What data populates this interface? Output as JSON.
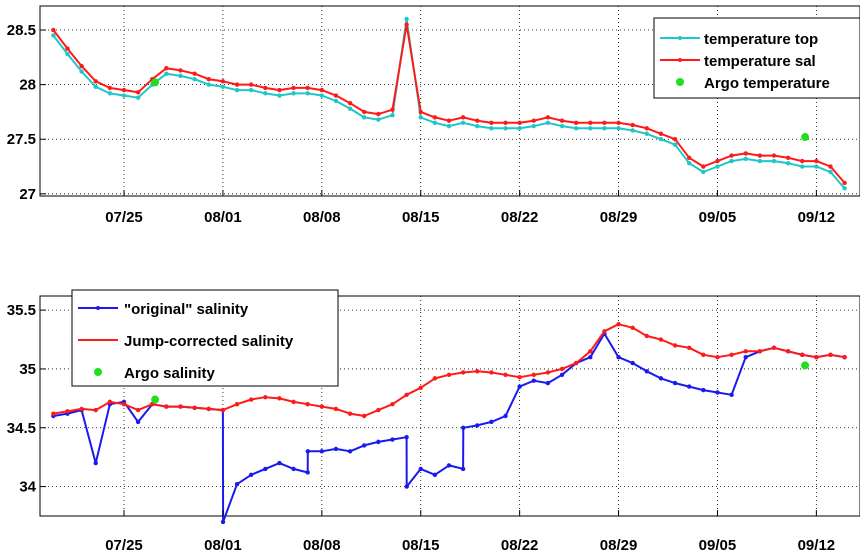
{
  "chart_data": [
    {
      "type": "line",
      "x_start": "07/20",
      "x_ticks": [
        "07/25",
        "08/01",
        "08/08",
        "08/15",
        "08/22",
        "08/29",
        "09/05",
        "09/12"
      ],
      "y_ticks": [
        "27",
        "27.5",
        "28",
        "28.5"
      ],
      "ylim": [
        26.98,
        28.72
      ],
      "grid": true,
      "legend": "top-right",
      "colors": {
        "temp_top": "#1fc7c7",
        "temp_sal": "#ff1a1a",
        "argo": "#22dd22"
      },
      "series": [
        {
          "name": "temperature top",
          "x": [
            0,
            1,
            2,
            3,
            4,
            5,
            6,
            7,
            8,
            9,
            10,
            11,
            12,
            13,
            14,
            15,
            16,
            17,
            18,
            19,
            20,
            21,
            22,
            23,
            24,
            25,
            26,
            27,
            28,
            29,
            30,
            31,
            32,
            33,
            34,
            35,
            36,
            37,
            38,
            39,
            40,
            41,
            42,
            43,
            44,
            45,
            46,
            47,
            48,
            49,
            50,
            51,
            52,
            53,
            54,
            55,
            56
          ],
          "values": [
            28.45,
            28.28,
            28.12,
            27.98,
            27.92,
            27.9,
            27.88,
            28.0,
            28.1,
            28.08,
            28.05,
            28.0,
            27.98,
            27.95,
            27.95,
            27.92,
            27.9,
            27.92,
            27.92,
            27.9,
            27.85,
            27.78,
            27.7,
            27.68,
            27.72,
            28.6,
            27.7,
            27.65,
            27.62,
            27.65,
            27.62,
            27.6,
            27.6,
            27.6,
            27.62,
            27.65,
            27.62,
            27.6,
            27.6,
            27.6,
            27.6,
            27.58,
            27.55,
            27.5,
            27.45,
            27.28,
            27.2,
            27.25,
            27.3,
            27.32,
            27.3,
            27.3,
            27.28,
            27.25,
            27.25,
            27.2,
            27.05
          ]
        },
        {
          "name": "temperature sal",
          "x": [
            0,
            1,
            2,
            3,
            4,
            5,
            6,
            7,
            8,
            9,
            10,
            11,
            12,
            13,
            14,
            15,
            16,
            17,
            18,
            19,
            20,
            21,
            22,
            23,
            24,
            25,
            26,
            27,
            28,
            29,
            30,
            31,
            32,
            33,
            34,
            35,
            36,
            37,
            38,
            39,
            40,
            41,
            42,
            43,
            44,
            45,
            46,
            47,
            48,
            49,
            50,
            51,
            52,
            53,
            54,
            55,
            56
          ],
          "values": [
            28.5,
            28.33,
            28.17,
            28.03,
            27.97,
            27.95,
            27.93,
            28.05,
            28.15,
            28.13,
            28.1,
            28.05,
            28.03,
            28.0,
            28.0,
            27.97,
            27.95,
            27.97,
            27.97,
            27.95,
            27.9,
            27.83,
            27.75,
            27.73,
            27.77,
            28.55,
            27.75,
            27.7,
            27.67,
            27.7,
            27.67,
            27.65,
            27.65,
            27.65,
            27.67,
            27.7,
            27.67,
            27.65,
            27.65,
            27.65,
            27.65,
            27.63,
            27.6,
            27.55,
            27.5,
            27.33,
            27.25,
            27.3,
            27.35,
            27.37,
            27.35,
            27.35,
            27.33,
            27.3,
            27.3,
            27.25,
            27.1
          ]
        },
        {
          "name": "Argo temperature",
          "style": "points",
          "x": [
            7.2,
            53.2
          ],
          "values": [
            28.02,
            27.52
          ]
        }
      ]
    },
    {
      "type": "line",
      "x_start": "07/20",
      "x_ticks": [
        "07/25",
        "08/01",
        "08/08",
        "08/15",
        "08/22",
        "08/29",
        "09/05",
        "09/12"
      ],
      "y_ticks": [
        "34",
        "34.5",
        "35",
        "35.5"
      ],
      "ylim": [
        33.75,
        35.62
      ],
      "grid": true,
      "legend": "top-left",
      "colors": {
        "original": "#1a1aee",
        "corrected": "#ff1a1a",
        "argo": "#22dd22"
      },
      "series": [
        {
          "name": "\"original\" salinity",
          "x": [
            0,
            1,
            2,
            3,
            4,
            5,
            6,
            7,
            8,
            9,
            10,
            11,
            12,
            12.01,
            13,
            14,
            15,
            16,
            17,
            18,
            18.01,
            19,
            20,
            21,
            22,
            23,
            24,
            25,
            25.01,
            26,
            27,
            28,
            29,
            29.01,
            30,
            31,
            32,
            33,
            34,
            35,
            36,
            37,
            38,
            39,
            40,
            41,
            42,
            43,
            44,
            45,
            46,
            47,
            48,
            49,
            50,
            51,
            52,
            53,
            54,
            55,
            56
          ],
          "values": [
            34.6,
            34.62,
            34.65,
            34.2,
            34.7,
            34.72,
            34.55,
            34.7,
            34.68,
            34.68,
            34.67,
            34.66,
            34.65,
            33.7,
            34.02,
            34.1,
            34.15,
            34.2,
            34.15,
            34.12,
            34.3,
            34.3,
            34.32,
            34.3,
            34.35,
            34.38,
            34.4,
            34.42,
            34.0,
            34.15,
            34.1,
            34.18,
            34.15,
            34.5,
            34.52,
            34.55,
            34.6,
            34.85,
            34.9,
            34.88,
            34.95,
            35.05,
            35.1,
            35.3,
            35.1,
            35.05,
            34.98,
            34.92,
            34.88,
            34.85,
            34.82,
            34.8,
            34.78,
            35.1,
            35.15,
            35.18,
            35.15,
            35.12,
            35.1,
            35.12,
            35.1
          ]
        },
        {
          "name": "Jump-corrected salinity",
          "x": [
            0,
            1,
            2,
            3,
            4,
            5,
            6,
            7,
            8,
            9,
            10,
            11,
            12,
            13,
            14,
            15,
            16,
            17,
            18,
            19,
            20,
            21,
            22,
            23,
            24,
            25,
            26,
            27,
            28,
            29,
            30,
            31,
            32,
            33,
            34,
            35,
            36,
            37,
            38,
            39,
            40,
            41,
            42,
            43,
            44,
            45,
            46,
            47,
            48,
            49,
            50,
            51,
            52,
            53,
            54,
            55,
            56
          ],
          "values": [
            34.62,
            34.64,
            34.66,
            34.65,
            34.72,
            34.7,
            34.65,
            34.7,
            34.68,
            34.68,
            34.67,
            34.66,
            34.65,
            34.7,
            34.74,
            34.76,
            34.75,
            34.72,
            34.7,
            34.68,
            34.66,
            34.62,
            34.6,
            34.65,
            34.7,
            34.78,
            34.84,
            34.92,
            34.95,
            34.97,
            34.98,
            34.97,
            34.95,
            34.93,
            34.95,
            34.97,
            35.0,
            35.05,
            35.15,
            35.32,
            35.38,
            35.35,
            35.28,
            35.25,
            35.2,
            35.18,
            35.12,
            35.1,
            35.12,
            35.15,
            35.15,
            35.18,
            35.15,
            35.12,
            35.1,
            35.12,
            35.1
          ]
        },
        {
          "name": "Argo salinity",
          "style": "points",
          "x": [
            7.2,
            53.2
          ],
          "values": [
            34.74,
            35.03
          ]
        }
      ]
    }
  ]
}
